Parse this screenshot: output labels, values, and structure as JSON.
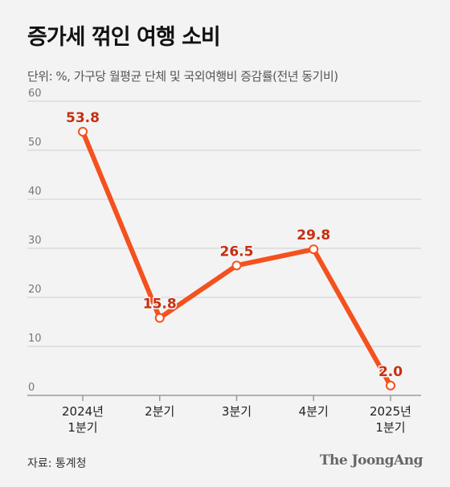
{
  "header": {
    "title": "증가세 꺾인 여행 소비",
    "subtitle": "단위: %, 가구당 월평균 단체 및 국외여행비 증감률(전년 동기비)"
  },
  "footer": {
    "source": "자료: 통계청",
    "brand": "The JoongAng"
  },
  "chart_data": {
    "type": "line",
    "title": "증가세 꺾인 여행 소비",
    "subtitle": "단위: %, 가구당 월평균 단체 및 국외여행비 증감률(전년 동기비)",
    "categories": [
      [
        "2024년",
        "1분기"
      ],
      [
        "2분기"
      ],
      [
        "3분기"
      ],
      [
        "4분기"
      ],
      [
        "2025년",
        "1분기"
      ]
    ],
    "series": [
      {
        "values": [
          53.8,
          15.8,
          26.5,
          29.8,
          2.0
        ],
        "labels": [
          "53.8",
          "15.8",
          "26.5",
          "29.8",
          "2.0"
        ]
      }
    ],
    "ylim": [
      0,
      60
    ],
    "yticks": [
      0,
      10,
      20,
      30,
      40,
      50,
      60
    ],
    "grid": true,
    "colors": {
      "line": "#f4511e",
      "label": "#c62f10",
      "grid": "#cfcfcf",
      "axis": "#999999",
      "tick": "#777777"
    }
  }
}
